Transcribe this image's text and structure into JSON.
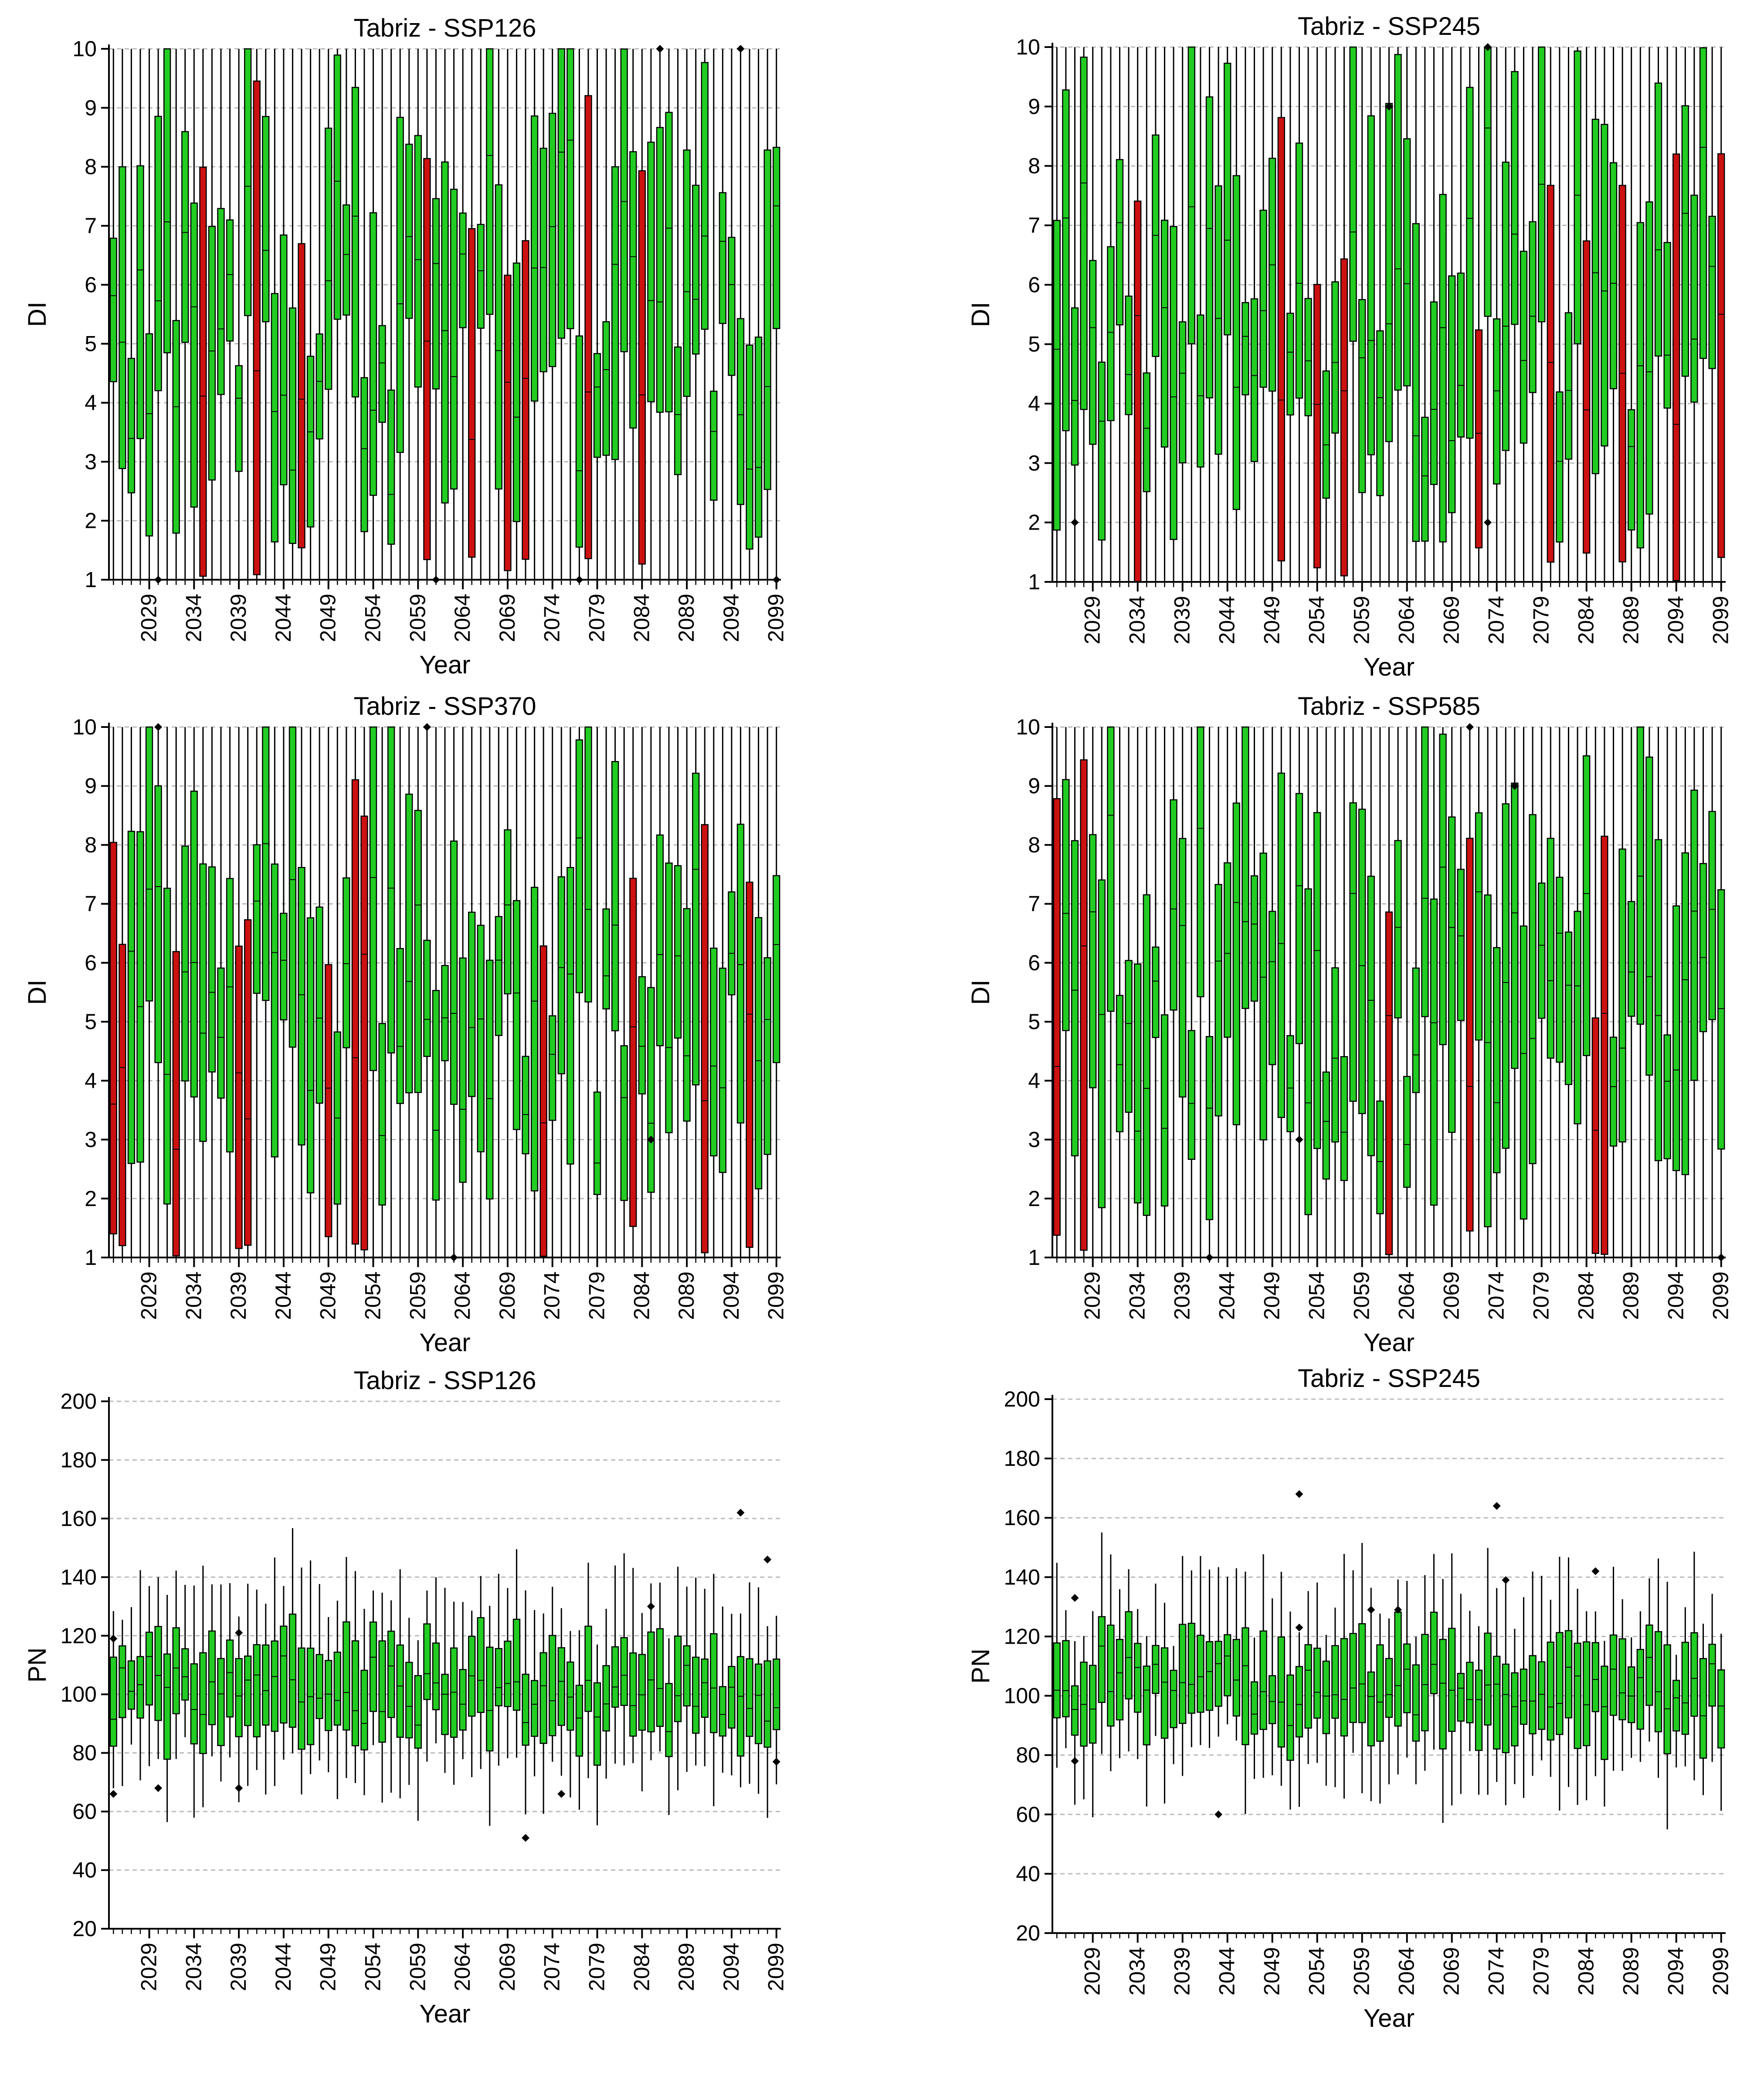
{
  "colors": {
    "normal_box": "#22cc22",
    "warning_box": "#cc1111",
    "outlier": "#000000",
    "grid": "#bbbbbb"
  },
  "chart_data": [
    {
      "type": "boxplot",
      "title": "Tabriz - SSP126",
      "xlabel": "Year",
      "ylabel": "DI",
      "ylim": [
        1,
        10
      ],
      "yticks": [
        1,
        2,
        3,
        4,
        5,
        6,
        7,
        8,
        9,
        10
      ],
      "xticks": [
        "2029",
        "2034",
        "2039",
        "2044",
        "2049",
        "2054",
        "2059",
        "2064",
        "2069",
        "2074",
        "2079",
        "2084",
        "2089",
        "2094",
        "2099"
      ],
      "grid": "horizontal-dashed",
      "year_range": [
        2025,
        2099
      ],
      "red_years": [
        2035,
        2041,
        2046,
        2060,
        2065,
        2069,
        2071,
        2078,
        2084
      ],
      "outliers": [
        {
          "year": 2030,
          "value": 1
        },
        {
          "year": 2061,
          "value": 1
        },
        {
          "year": 2077,
          "value": 1
        },
        {
          "year": 2086,
          "value": 10
        },
        {
          "year": 2095,
          "value": 10
        },
        {
          "year": 2099,
          "value": 1
        }
      ]
    },
    {
      "type": "boxplot",
      "title": "Tabriz - SSP245",
      "xlabel": "Year",
      "ylabel": "DI",
      "ylim": [
        1,
        10
      ],
      "yticks": [
        1,
        2,
        3,
        4,
        5,
        6,
        7,
        8,
        9,
        10
      ],
      "xticks": [
        "2029",
        "2034",
        "2039",
        "2044",
        "2049",
        "2054",
        "2059",
        "2064",
        "2069",
        "2074",
        "2079",
        "2084",
        "2089",
        "2094",
        "2099"
      ],
      "grid": "horizontal-dashed",
      "year_range": [
        2025,
        2099
      ],
      "red_years": [
        2034,
        2050,
        2054,
        2057,
        2072,
        2080,
        2084,
        2088,
        2094,
        2099
      ],
      "outliers": [
        {
          "year": 2027,
          "value": 2
        },
        {
          "year": 2062,
          "value": 9
        },
        {
          "year": 2073,
          "value": 10
        },
        {
          "year": 2073,
          "value": 2
        }
      ]
    },
    {
      "type": "boxplot",
      "title": "Tabriz - SSP370",
      "xlabel": "Year",
      "ylabel": "DI",
      "ylim": [
        1,
        10
      ],
      "yticks": [
        1,
        2,
        3,
        4,
        5,
        6,
        7,
        8,
        9,
        10
      ],
      "xticks": [
        "2029",
        "2034",
        "2039",
        "2044",
        "2049",
        "2054",
        "2059",
        "2064",
        "2069",
        "2074",
        "2079",
        "2084",
        "2089",
        "2094",
        "2099"
      ],
      "grid": "horizontal-dashed",
      "year_range": [
        2025,
        2099
      ],
      "red_years": [
        2025,
        2026,
        2032,
        2039,
        2040,
        2049,
        2052,
        2053,
        2073,
        2083,
        2091,
        2096
      ],
      "outliers": [
        {
          "year": 2030,
          "value": 10
        },
        {
          "year": 2060,
          "value": 10
        },
        {
          "year": 2063,
          "value": 1
        },
        {
          "year": 2085,
          "value": 3
        }
      ]
    },
    {
      "type": "boxplot",
      "title": "Tabriz - SSP585",
      "xlabel": "Year",
      "ylabel": "DI",
      "ylim": [
        1,
        10
      ],
      "yticks": [
        1,
        2,
        3,
        4,
        5,
        6,
        7,
        8,
        9,
        10
      ],
      "xticks": [
        "2029",
        "2034",
        "2039",
        "2044",
        "2049",
        "2054",
        "2059",
        "2064",
        "2069",
        "2074",
        "2079",
        "2084",
        "2089",
        "2094",
        "2099"
      ],
      "grid": "horizontal-dashed",
      "year_range": [
        2025,
        2099
      ],
      "red_years": [
        2025,
        2028,
        2062,
        2071,
        2085,
        2086
      ],
      "outliers": [
        {
          "year": 2042,
          "value": 1
        },
        {
          "year": 2052,
          "value": 3
        },
        {
          "year": 2071,
          "value": 10
        },
        {
          "year": 2076,
          "value": 9
        },
        {
          "year": 2099,
          "value": 1
        }
      ]
    },
    {
      "type": "boxplot",
      "title": "Tabriz - SSP126",
      "xlabel": "Year",
      "ylabel": "PN",
      "ylim": [
        20,
        200
      ],
      "yticks": [
        20,
        40,
        60,
        80,
        100,
        120,
        140,
        160,
        180,
        200
      ],
      "xticks": [
        "2029",
        "2034",
        "2039",
        "2044",
        "2049",
        "2054",
        "2059",
        "2064",
        "2069",
        "2074",
        "2079",
        "2084",
        "2089",
        "2094",
        "2099"
      ],
      "grid": "horizontal-dashed",
      "year_range": [
        2025,
        2099
      ],
      "red_years": [],
      "outliers": [
        {
          "year": 2025,
          "value": 119
        },
        {
          "year": 2025,
          "value": 66
        },
        {
          "year": 2030,
          "value": 68
        },
        {
          "year": 2039,
          "value": 121
        },
        {
          "year": 2039,
          "value": 68
        },
        {
          "year": 2071,
          "value": 51
        },
        {
          "year": 2075,
          "value": 66
        },
        {
          "year": 2085,
          "value": 130
        },
        {
          "year": 2095,
          "value": 162
        },
        {
          "year": 2098,
          "value": 146
        },
        {
          "year": 2099,
          "value": 77
        }
      ]
    },
    {
      "type": "boxplot",
      "title": "Tabriz - SSP245",
      "xlabel": "Year",
      "ylabel": "PN",
      "ylim": [
        20,
        200
      ],
      "yticks": [
        20,
        40,
        60,
        80,
        100,
        120,
        140,
        160,
        180,
        200
      ],
      "xticks": [
        "2029",
        "2034",
        "2039",
        "2044",
        "2049",
        "2054",
        "2059",
        "2064",
        "2069",
        "2074",
        "2079",
        "2084",
        "2089",
        "2094",
        "2099"
      ],
      "grid": "horizontal-dashed",
      "year_range": [
        2025,
        2099
      ],
      "red_years": [],
      "outliers": [
        {
          "year": 2027,
          "value": 133
        },
        {
          "year": 2027,
          "value": 78
        },
        {
          "year": 2043,
          "value": 60
        },
        {
          "year": 2052,
          "value": 168
        },
        {
          "year": 2052,
          "value": 123
        },
        {
          "year": 2060,
          "value": 129
        },
        {
          "year": 2063,
          "value": 129
        },
        {
          "year": 2074,
          "value": 164
        },
        {
          "year": 2075,
          "value": 139
        },
        {
          "year": 2085,
          "value": 142
        }
      ]
    }
  ]
}
